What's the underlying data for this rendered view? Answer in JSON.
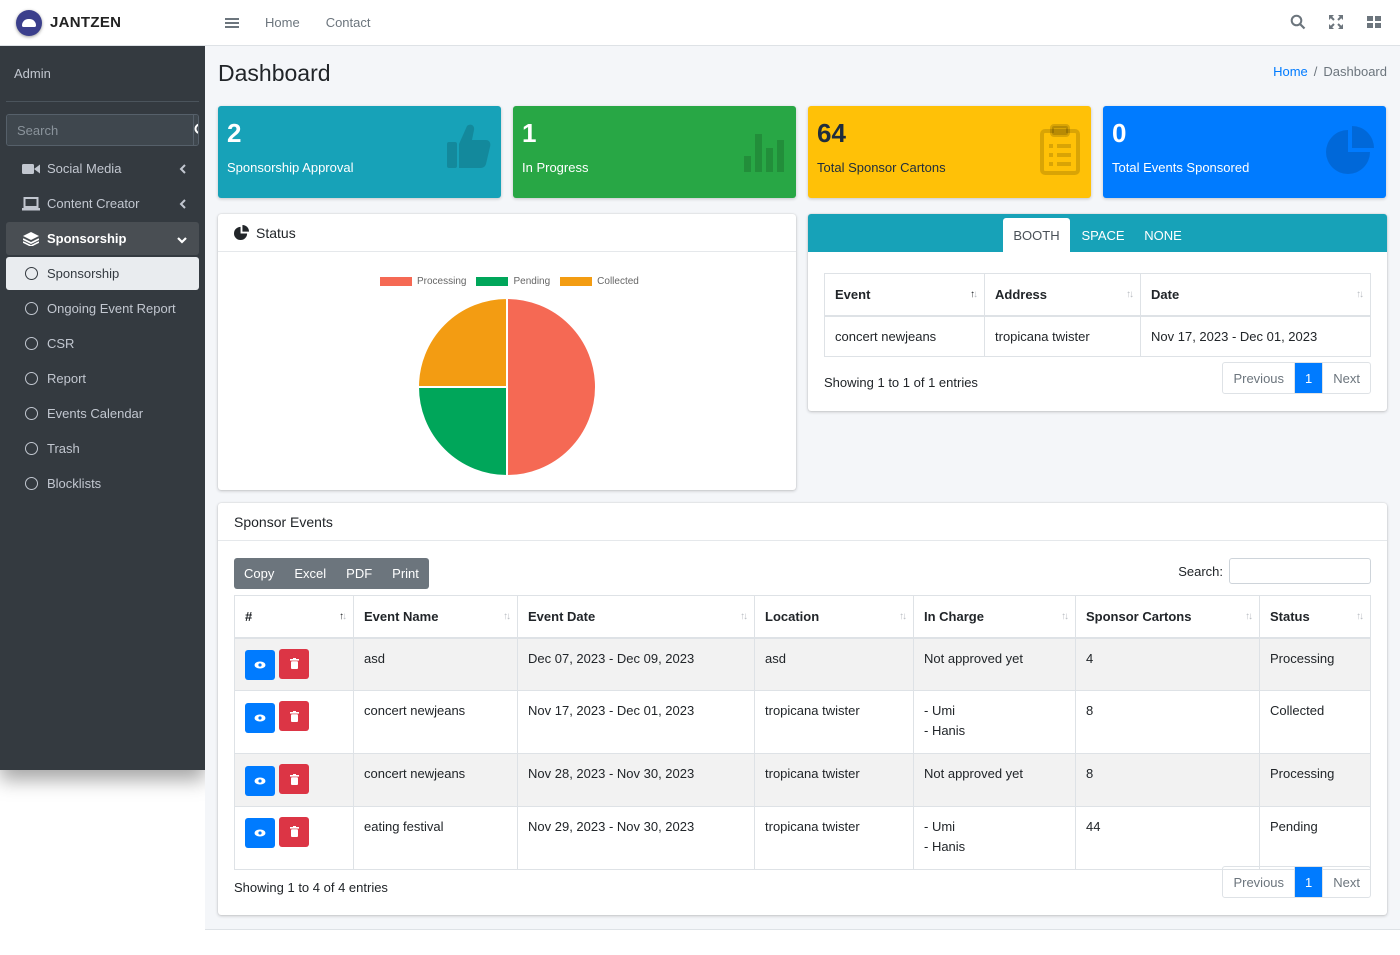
{
  "brand": {
    "name": "JANTZEN"
  },
  "user": {
    "name": "Admin"
  },
  "sidebar": {
    "search_placeholder": "Search",
    "items": [
      {
        "label": "Social Media",
        "icon": "video-icon"
      },
      {
        "label": "Content Creator",
        "icon": "laptop-icon"
      },
      {
        "label": "Sponsorship",
        "icon": "layers-icon"
      },
      {
        "label": "Sponsorship",
        "icon": "circle-icon"
      },
      {
        "label": "Ongoing Event Report",
        "icon": "circle-icon"
      },
      {
        "label": "CSR",
        "icon": "circle-icon"
      },
      {
        "label": "Report",
        "icon": "circle-icon"
      },
      {
        "label": "Events Calendar",
        "icon": "circle-icon"
      },
      {
        "label": "Trash",
        "icon": "circle-icon"
      },
      {
        "label": "Blocklists",
        "icon": "circle-icon"
      }
    ]
  },
  "topbar": {
    "links": [
      "Home",
      "Contact"
    ]
  },
  "page": {
    "title": "Dashboard",
    "breadcrumb": {
      "home": "Home",
      "current": "Dashboard"
    }
  },
  "stats": [
    {
      "value": "2",
      "label": "Sponsorship Approval",
      "color": "#17a2b8",
      "icon": "thumbs-up-icon"
    },
    {
      "value": "1",
      "label": "In Progress",
      "color": "#28a745",
      "icon": "bar-chart-icon"
    },
    {
      "value": "64",
      "label": "Total Sponsor Cartons",
      "color": "#ffc107",
      "icon": "clipboard-icon"
    },
    {
      "value": "0",
      "label": "Total Events Sponsored",
      "color": "#007bff",
      "icon": "pie-chart-icon"
    }
  ],
  "status_card": {
    "title": "Status"
  },
  "chart_data": {
    "type": "pie",
    "title": "",
    "labels": [
      "Processing",
      "Pending",
      "Collected"
    ],
    "values": [
      2,
      1,
      1
    ],
    "colors": [
      "#f56954",
      "#00a65a",
      "#f39c12"
    ],
    "legend": "top"
  },
  "tabs_card": {
    "tabs": [
      "BOOTH",
      "SPACE",
      "NONE"
    ],
    "columns": [
      "Event",
      "Address",
      "Date"
    ],
    "rows": [
      [
        "concert newjeans",
        "tropicana twister",
        "Nov 17, 2023 - Dec 01, 2023"
      ]
    ],
    "info": "Showing 1 to 1 of 1 entries",
    "pagination": {
      "previous": "Previous",
      "page": "1",
      "next": "Next"
    }
  },
  "events_card": {
    "title": "Sponsor Events",
    "buttons": [
      "Copy",
      "Excel",
      "PDF",
      "Print"
    ],
    "search_label": "Search:",
    "columns": [
      "#",
      "Event Name",
      "Event Date",
      "Location",
      "In Charge",
      "Sponsor Cartons",
      "Status"
    ],
    "rows": [
      {
        "name": "asd",
        "date": "Dec 07, 2023 - Dec 09, 2023",
        "location": "asd",
        "in_charge": [
          "Not approved yet"
        ],
        "cartons": "4",
        "status": "Processing"
      },
      {
        "name": "concert newjeans",
        "date": "Nov 17, 2023 - Dec 01, 2023",
        "location": "tropicana twister",
        "in_charge": [
          "- Umi",
          "- Hanis"
        ],
        "cartons": "8",
        "status": "Collected"
      },
      {
        "name": "concert newjeans",
        "date": "Nov 28, 2023 - Nov 30, 2023",
        "location": "tropicana twister",
        "in_charge": [
          "Not approved yet"
        ],
        "cartons": "8",
        "status": "Processing"
      },
      {
        "name": "eating festival",
        "date": "Nov 29, 2023 - Nov 30, 2023",
        "location": "tropicana twister",
        "in_charge": [
          "- Umi",
          "- Hanis"
        ],
        "cartons": "44",
        "status": "Pending"
      }
    ],
    "info": "Showing 1 to 4 of 4 entries",
    "pagination": {
      "previous": "Previous",
      "page": "1",
      "next": "Next"
    }
  }
}
